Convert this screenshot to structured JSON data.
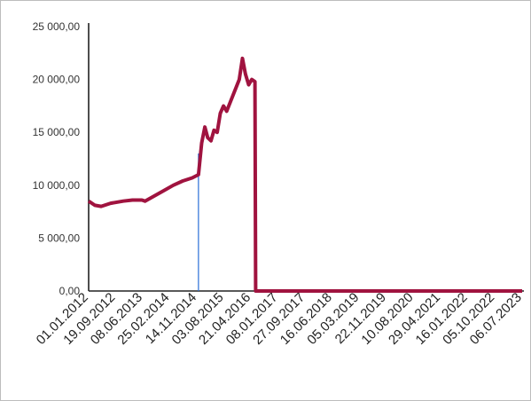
{
  "chart_data": {
    "type": "line",
    "title": "",
    "xlabel": "",
    "ylabel": "",
    "ylim": [
      0,
      25000
    ],
    "y_ticks": [
      {
        "value": 0,
        "label": "0,00"
      },
      {
        "value": 5000,
        "label": "5 000,00"
      },
      {
        "value": 10000,
        "label": "10 000,00"
      },
      {
        "value": 15000,
        "label": "15 000,00"
      },
      {
        "value": 20000,
        "label": "20 000,00"
      },
      {
        "value": 25000,
        "label": "25 000,00"
      }
    ],
    "x_ticks": [
      "01.01.2012",
      "19.09.2012",
      "08.06.2013",
      "25.02.2014",
      "14.11.2014",
      "03.08.2015",
      "21.04.2016",
      "08.01.2017",
      "27.09.2017",
      "16.06.2018",
      "05.03.2019",
      "22.11.2019",
      "10.08.2020",
      "29.04.2021",
      "16.01.2022",
      "05.10.2022",
      "06.07.2023"
    ],
    "grid": false,
    "legend": "none",
    "series": [
      {
        "color": "#a0133f",
        "points": [
          [
            "01.01.2012",
            8500
          ],
          [
            "01.03.2012",
            8100
          ],
          [
            "01.05.2012",
            8000
          ],
          [
            "01.08.2012",
            8300
          ],
          [
            "01.12.2012",
            8500
          ],
          [
            "01.03.2013",
            8600
          ],
          [
            "01.06.2013",
            8600
          ],
          [
            "01.07.2013",
            8500
          ],
          [
            "01.10.2013",
            9000
          ],
          [
            "01.01.2014",
            9500
          ],
          [
            "01.04.2014",
            10000
          ],
          [
            "01.07.2014",
            10400
          ],
          [
            "01.10.2014",
            10700
          ],
          [
            "01.12.2014",
            11000
          ],
          [
            "01.01.2015",
            14000
          ],
          [
            "01.02.2015",
            15500
          ],
          [
            "01.03.2015",
            14500
          ],
          [
            "01.04.2015",
            14200
          ],
          [
            "01.05.2015",
            15200
          ],
          [
            "01.06.2015",
            15000
          ],
          [
            "01.07.2015",
            16800
          ],
          [
            "01.08.2015",
            17500
          ],
          [
            "01.09.2015",
            17000
          ],
          [
            "01.11.2015",
            18500
          ],
          [
            "01.01.2016",
            20000
          ],
          [
            "01.02.2016",
            22000
          ],
          [
            "01.03.2016",
            20500
          ],
          [
            "01.04.2016",
            19500
          ],
          [
            "01.05.2016",
            20000
          ],
          [
            "01.06.2016",
            19800
          ],
          [
            "08.06.2016",
            0
          ],
          [
            "06.07.2023",
            0
          ]
        ]
      }
    ],
    "reference_line": {
      "date": "01.12.2014",
      "value": 13000,
      "color": "#2a6fd6"
    }
  }
}
